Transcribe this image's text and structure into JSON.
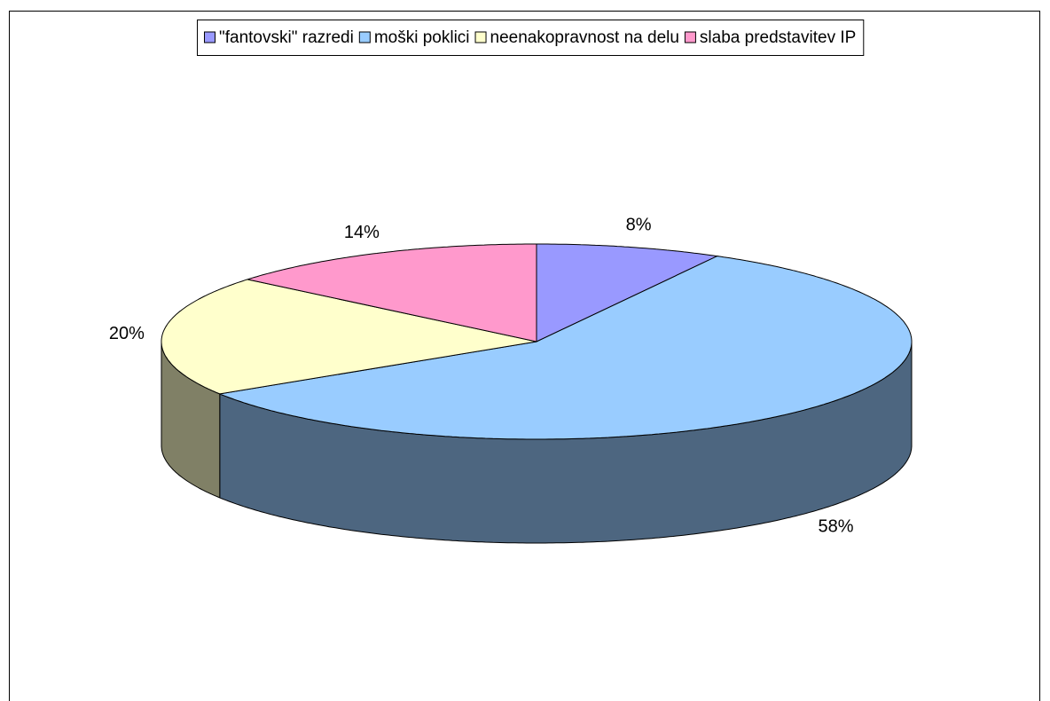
{
  "chart_data": {
    "type": "pie",
    "categories": [
      "\"fantovski\" razredi",
      "moški poklici",
      "neenakopravnost na delu",
      "slaba predstavitev IP"
    ],
    "values": [
      8,
      58,
      20,
      14
    ],
    "value_labels": [
      "8%",
      "58%",
      "20%",
      "14%"
    ],
    "colors": [
      "#9999ff",
      "#99ccff",
      "#ffffcc",
      "#ff99cc"
    ],
    "legend": "top",
    "three_d": true
  }
}
